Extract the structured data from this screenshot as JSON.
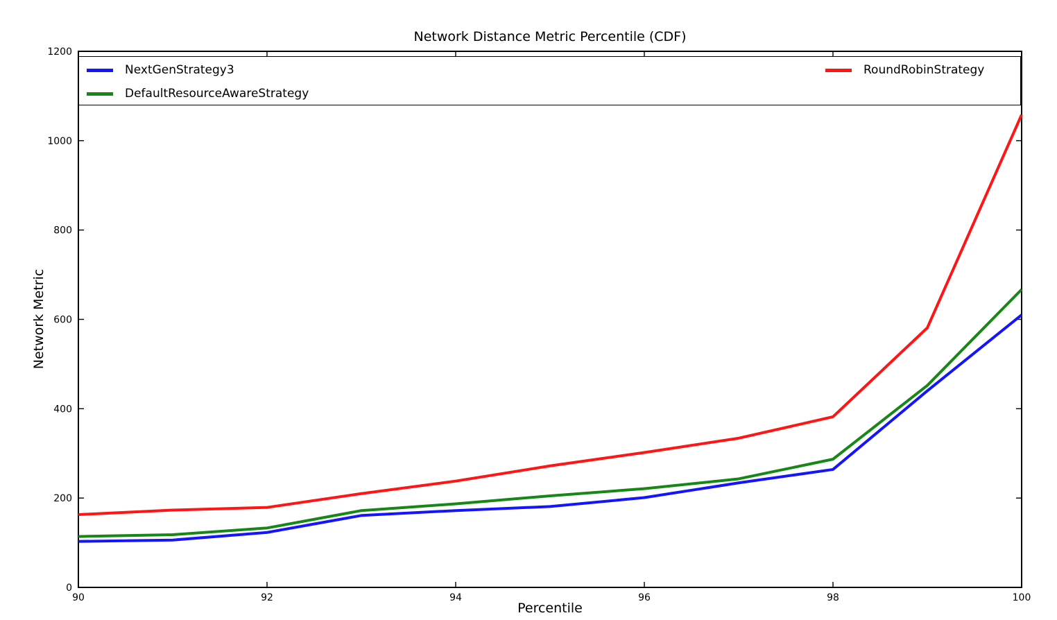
{
  "chart_data": {
    "type": "line",
    "title": "Network Distance Metric Percentile (CDF)",
    "xlabel": "Percentile",
    "ylabel": "Network Metric",
    "xlim": [
      90,
      100
    ],
    "ylim": [
      0,
      1200
    ],
    "x_ticks": [
      "90",
      "92",
      "94",
      "96",
      "98",
      "100"
    ],
    "x_tick_values": [
      90,
      92,
      94,
      96,
      98,
      100
    ],
    "y_ticks": [
      "0",
      "200",
      "400",
      "600",
      "800",
      "1000",
      "1200"
    ],
    "y_tick_values": [
      0,
      200,
      400,
      600,
      800,
      1000,
      1200
    ],
    "grid": false,
    "legend_position": "top, expanded full-width, 2 columns",
    "axis_color": "#000000",
    "x": [
      90,
      91,
      92,
      93,
      94,
      95,
      96,
      97,
      98,
      99,
      100
    ],
    "series": [
      {
        "name": "NextGenStrategy3",
        "color": "#1414ff",
        "values": [
          103,
          106,
          123,
          161,
          172,
          181,
          201,
          234,
          264,
          440,
          610
        ]
      },
      {
        "name": "DefaultResourceAwareStrategy",
        "color": "#178717",
        "values": [
          114,
          118,
          133,
          172,
          187,
          205,
          221,
          243,
          287,
          452,
          667
        ]
      },
      {
        "name": "RoundRobinStrategy",
        "color": "#ff1515",
        "values": [
          163,
          173,
          179,
          210,
          238,
          272,
          302,
          334,
          382,
          581,
          1058
        ]
      }
    ]
  }
}
